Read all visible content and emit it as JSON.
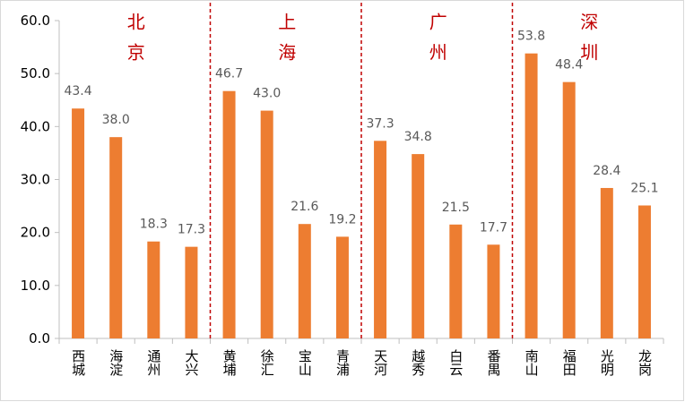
{
  "chart_data": {
    "type": "bar",
    "categories": [
      "西城",
      "海淀",
      "通州",
      "大兴",
      "黄埔",
      "徐汇",
      "宝山",
      "青浦",
      "天河",
      "越秀",
      "白云",
      "番禺",
      "南山",
      "福田",
      "光明",
      "龙岗"
    ],
    "values": [
      43.4,
      38.0,
      18.3,
      17.3,
      46.7,
      43.0,
      21.6,
      19.2,
      37.3,
      34.8,
      21.5,
      17.7,
      53.8,
      48.4,
      28.4,
      25.1
    ],
    "value_labels": [
      "43.4",
      "38.0",
      "18.3",
      "17.3",
      "46.7",
      "43.0",
      "21.6",
      "19.2",
      "37.3",
      "34.8",
      "21.5",
      "17.7",
      "53.8",
      "48.4",
      "28.4",
      "25.1"
    ],
    "groups": [
      "北京",
      "上海",
      "广州",
      "深圳"
    ],
    "color": "#ed7d31",
    "group_color": "#c00000",
    "ylim": [
      0,
      60
    ],
    "yticks": [
      {
        "value": 0,
        "label": "0.0"
      },
      {
        "value": 10,
        "label": "10.0"
      },
      {
        "value": 20,
        "label": "20.0"
      },
      {
        "value": 30,
        "label": "30.0"
      },
      {
        "value": 40,
        "label": "40.0"
      },
      {
        "value": 50,
        "label": "50.0"
      },
      {
        "value": 60,
        "label": "60.0"
      }
    ],
    "grid": false
  }
}
